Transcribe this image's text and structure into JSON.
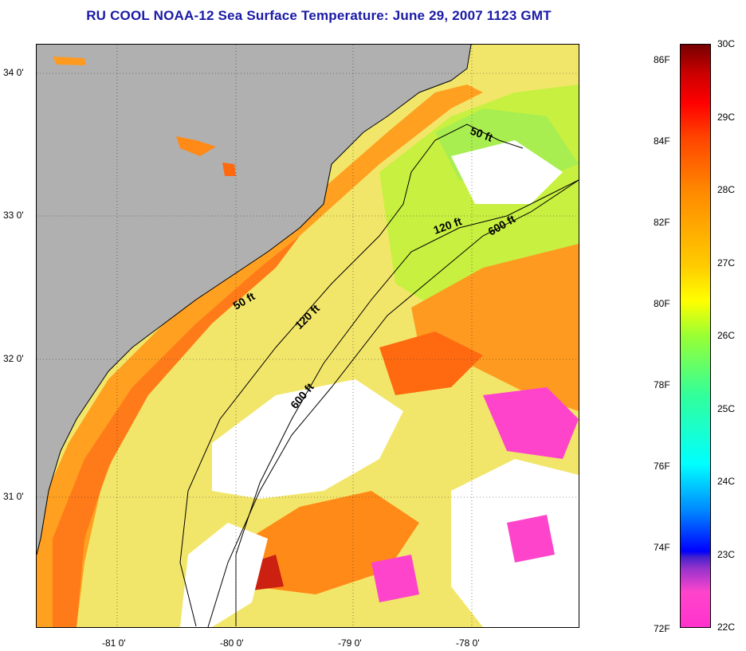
{
  "title": "RU COOL  NOAA-12  Sea Surface Temperature:  June 29, 2007 1123 GMT",
  "lat_labels": [
    "34 0'",
    "33 0'",
    "32 0'",
    "31 0'"
  ],
  "lon_labels": [
    "-81 0'",
    "-80 0'",
    "-79 0'",
    "-78 0'"
  ],
  "contour_labels": {
    "c50_north": "50 ft",
    "c50_mid": "50 ft",
    "c120_north": "120 ft",
    "c120_mid": "120 ft",
    "c600_north": "600 ft",
    "c600_mid": "600 ft"
  },
  "colorbar": {
    "fahrenheit": [
      "86F",
      "84F",
      "82F",
      "80F",
      "78F",
      "76F",
      "74F",
      "72F"
    ],
    "celsius": [
      "30C",
      "29C",
      "28C",
      "27C",
      "26C",
      "25C",
      "24C",
      "23C",
      "22C"
    ]
  },
  "colors": {
    "land": "#b0b0b0",
    "cloud": "#ffffff",
    "title": "#1a1aa6"
  }
}
